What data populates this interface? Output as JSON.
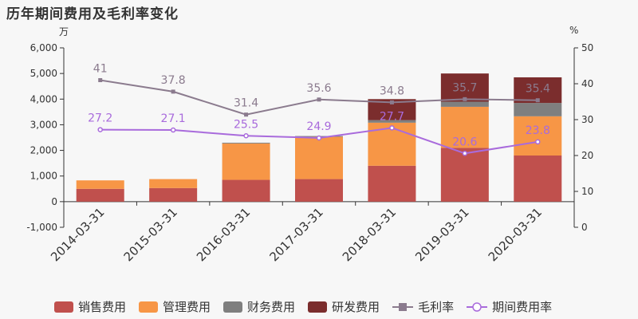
{
  "chart_data": {
    "type": "bar",
    "title": "历年期间费用及毛利率变化",
    "left_unit": "万",
    "right_unit": "%",
    "categories": [
      "2014-03-31",
      "2015-03-31",
      "2016-03-31",
      "2017-03-31",
      "2018-03-31",
      "2019-03-31",
      "2020-03-31"
    ],
    "ylim": [
      -1000,
      6000
    ],
    "y2lim": [
      0,
      50
    ],
    "yticks": [
      "-1,000",
      "0",
      "1,000",
      "2,000",
      "3,000",
      "4,000",
      "5,000",
      "6,000"
    ],
    "y2ticks": [
      "0",
      "10",
      "20",
      "30",
      "40",
      "50"
    ],
    "series": [
      {
        "name": "销售费用",
        "type": "bar",
        "color": "#c0504d",
        "values": [
          500,
          530,
          850,
          880,
          1400,
          2100,
          1800
        ]
      },
      {
        "name": "管理费用",
        "type": "bar",
        "color": "#f79646",
        "values": [
          330,
          350,
          1420,
          1650,
          1680,
          1600,
          1530
        ]
      },
      {
        "name": "财务费用",
        "type": "bar",
        "color": "#7f7f7f",
        "values": [
          0,
          0,
          30,
          30,
          100,
          200,
          520
        ]
      },
      {
        "name": "研发费用",
        "type": "bar",
        "color": "#7b2d2d",
        "values": [
          0,
          0,
          0,
          0,
          820,
          1100,
          1000
        ]
      },
      {
        "name": "毛利率",
        "type": "line",
        "color": "#8b7b8e",
        "values": [
          41,
          37.8,
          31.4,
          35.6,
          34.8,
          35.7,
          35.4
        ],
        "labels": [
          "41",
          "37.8",
          "31.4",
          "35.6",
          "34.8",
          "35.7",
          "35.4"
        ]
      },
      {
        "name": "期间费用率",
        "type": "line",
        "color": "#a96bdc",
        "values": [
          27.2,
          27.1,
          25.5,
          24.9,
          27.7,
          20.6,
          23.8
        ],
        "labels": [
          "27.2",
          "27.1",
          "25.5",
          "24.9",
          "27.7",
          "20.6",
          "23.8"
        ]
      }
    ],
    "grid": false,
    "legend": "bottom"
  }
}
